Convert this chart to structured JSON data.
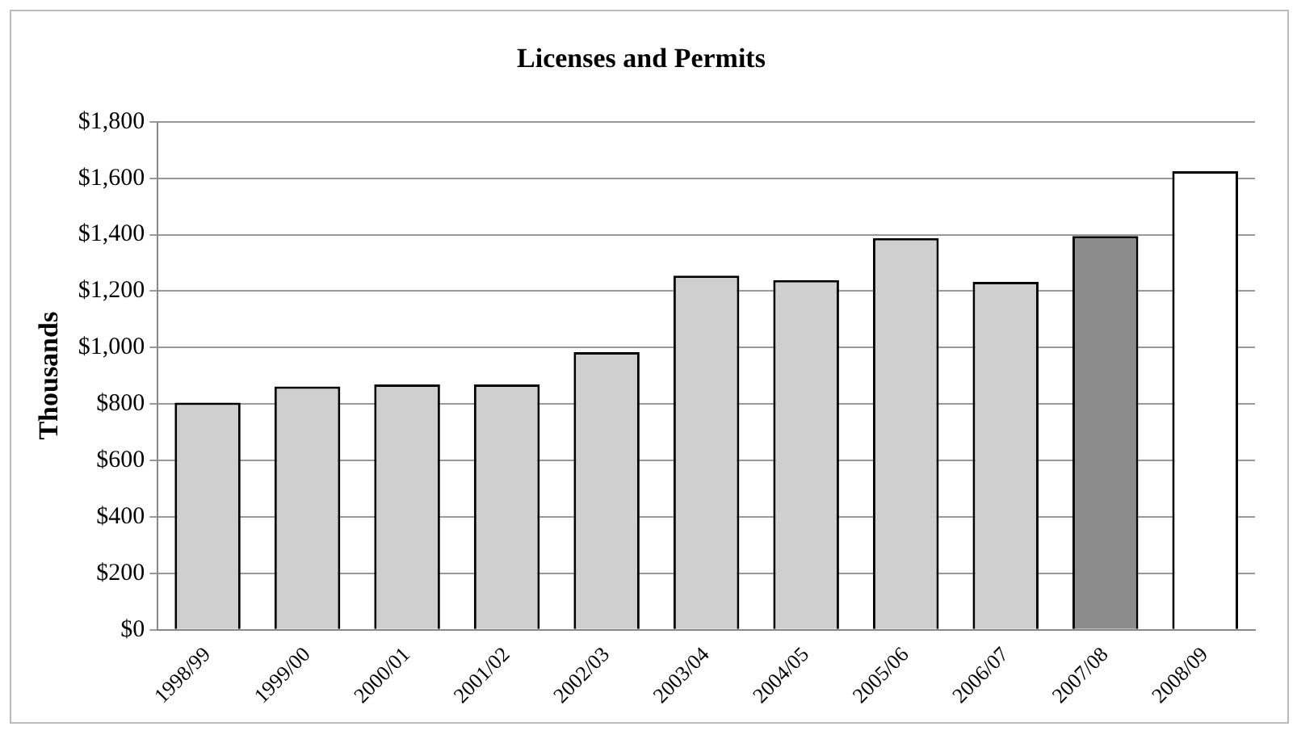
{
  "chart_data": {
    "type": "bar",
    "title": "Licenses and Permits",
    "ylabel": "Thousands",
    "categories": [
      "1998/99",
      "1999/00",
      "2000/01",
      "2001/02",
      "2002/03",
      "2003/04",
      "2004/05",
      "2005/06",
      "2006/07",
      "2007/08",
      "2008/09"
    ],
    "values": [
      805,
      862,
      869,
      869,
      984,
      1255,
      1239,
      1388,
      1233,
      1395,
      1625
    ],
    "colors": [
      "#cfcfcf",
      "#cfcfcf",
      "#cfcfcf",
      "#cfcfcf",
      "#cfcfcf",
      "#cfcfcf",
      "#cfcfcf",
      "#cfcfcf",
      "#cfcfcf",
      "#8c8c8c",
      "#ffffff"
    ],
    "ylim": [
      0,
      1800
    ],
    "yticks": [
      {
        "value": 0,
        "label": "$0"
      },
      {
        "value": 200,
        "label": "$200"
      },
      {
        "value": 400,
        "label": "$400"
      },
      {
        "value": 600,
        "label": "$600"
      },
      {
        "value": 800,
        "label": "$800"
      },
      {
        "value": 1000,
        "label": "$1,000"
      },
      {
        "value": 1200,
        "label": "$1,200"
      },
      {
        "value": 1400,
        "label": "$1,400"
      },
      {
        "value": 1600,
        "label": "$1,600"
      },
      {
        "value": 1800,
        "label": "$1,800"
      }
    ],
    "grid": "y",
    "legend": false
  }
}
